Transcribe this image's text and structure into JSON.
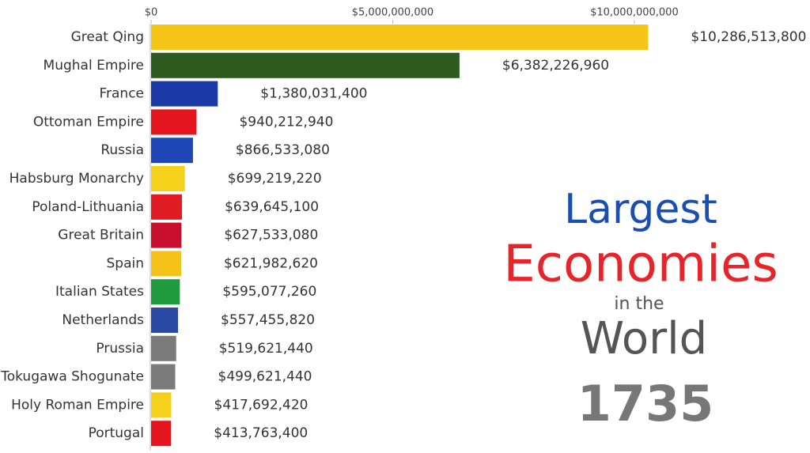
{
  "chart_data": {
    "type": "bar",
    "orientation": "horizontal",
    "title_lines": [
      "Largest",
      "Economies",
      "in the",
      "World"
    ],
    "year_label": "1735",
    "categories": [
      "Great Qing",
      "Mughal Empire",
      "France",
      "Ottoman Empire",
      "Russia",
      "Habsburg Monarchy",
      "Poland-Lithuania",
      "Great Britain",
      "Spain",
      "Italian States",
      "Netherlands",
      "Prussia",
      "Tokugawa Shogunate",
      "Holy Roman Empire",
      "Portugal"
    ],
    "values": [
      10286513800,
      6382226960,
      1380031400,
      940212940,
      866533080,
      699219220,
      639645100,
      627533080,
      621982620,
      595077260,
      557455820,
      519621440,
      499621440,
      417692420,
      413763400
    ],
    "value_labels": [
      "$10,286,513,800",
      "$6,382,226,960",
      "$1,380,031,400",
      "$940,212,940",
      "$866,533,080",
      "$699,219,220",
      "$639,645,100",
      "$627,533,080",
      "$621,982,620",
      "$595,077,260",
      "$557,455,820",
      "$519,621,440",
      "$499,621,440",
      "$417,692,420",
      "$413,763,400"
    ],
    "colors": [
      "#f5c518",
      "#2d5a1e",
      "#1c3aa6",
      "#e4151e",
      "#1f46b6",
      "#f6d11c",
      "#df1b24",
      "#c8102e",
      "#f5c21c",
      "#1f9a3c",
      "#2b4aa6",
      "#7b7b7b",
      "#7b7b7b",
      "#f6d11c",
      "#e4151e"
    ],
    "xlim": [
      0,
      11000000000
    ],
    "xticks": [
      {
        "value": 0,
        "label": "$0"
      },
      {
        "value": 5000000000,
        "label": "$5,000,000,000"
      },
      {
        "value": 10000000000,
        "label": "$10,000,000,000"
      }
    ],
    "grid": false
  }
}
